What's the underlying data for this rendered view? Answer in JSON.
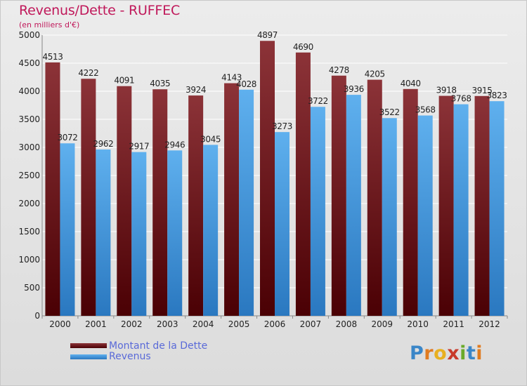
{
  "header": {
    "title": "Revenus/Dette - RUFFEC",
    "subtitle": "(en milliers d'€)"
  },
  "colors": {
    "dette_top": "#8c3338",
    "dette_bottom": "#4a0004",
    "revenus_top": "#5fb0ee",
    "revenus_bottom": "#2a78c0",
    "grid": "#ffffff",
    "axis_text": "#222222"
  },
  "chart_data": {
    "type": "bar",
    "title": "Revenus/Dette - RUFFEC",
    "subtitle": "(en milliers d'€)",
    "xlabel": "",
    "ylabel": "",
    "ylim": [
      0,
      5000
    ],
    "yticks": [
      0,
      500,
      1000,
      1500,
      2000,
      2500,
      3000,
      3500,
      4000,
      4500,
      5000
    ],
    "grid": true,
    "legend_position": "bottom-left",
    "categories": [
      "2000",
      "2001",
      "2002",
      "2003",
      "2004",
      "2005",
      "2006",
      "2007",
      "2008",
      "2009",
      "2010",
      "2011",
      "2012"
    ],
    "series": [
      {
        "name": "Montant de la Dette",
        "values": [
          4513,
          4222,
          4091,
          4035,
          3924,
          4143,
          4897,
          4690,
          4278,
          4205,
          4040,
          3918,
          3915
        ]
      },
      {
        "name": "Revenus",
        "values": [
          3072,
          2962,
          2917,
          2946,
          3045,
          4028,
          3273,
          3722,
          3936,
          3522,
          3568,
          3768,
          3823
        ]
      }
    ]
  },
  "legend": {
    "items": [
      {
        "label": "Montant de la Dette"
      },
      {
        "label": "Revenus"
      }
    ]
  },
  "logo": {
    "letters": [
      "P",
      "r",
      "o",
      "x",
      "i",
      "t",
      "i"
    ],
    "letter_colors": [
      "#3a86c8",
      "#e07b20",
      "#e8b020",
      "#c83a2a",
      "#6aaa2a",
      "#3a86c8",
      "#e07b20"
    ]
  }
}
